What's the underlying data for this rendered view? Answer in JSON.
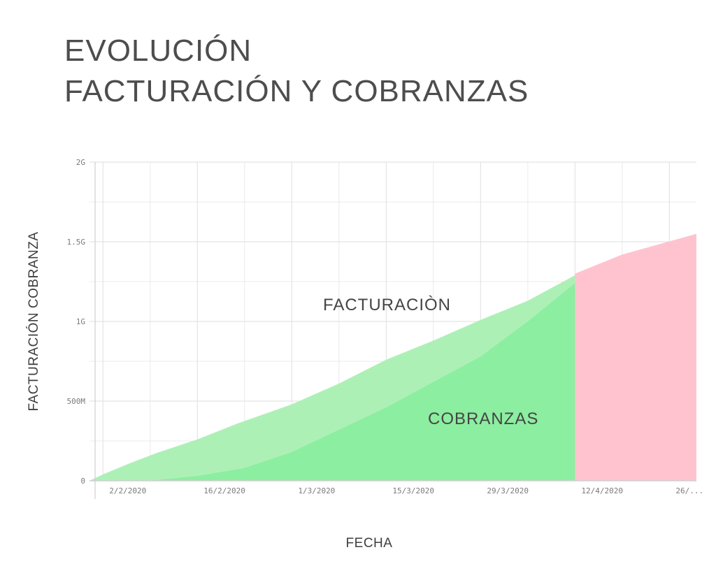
{
  "header": {
    "title_line1": "EVOLUCIÓN",
    "title_line2": "FACTURACIÓN Y COBRANZAS"
  },
  "colors": {
    "facturacion_fill": "#adf0b6",
    "cobranzas_fill": "#8ceea0",
    "projection_fill": "#ffc3d0",
    "grid": "#e4e4e4",
    "axis": "#cfcfcf"
  },
  "chart_data": {
    "type": "area",
    "xlabel": "FECHA",
    "ylabel": "FACTURACIÓN COBRANZA",
    "x_ticks": [
      {
        "date": "2020-02-02",
        "label": "2/2/2020"
      },
      {
        "date": "2020-02-16",
        "label": "16/2/2020"
      },
      {
        "date": "2020-03-01",
        "label": "1/3/2020"
      },
      {
        "date": "2020-03-15",
        "label": "15/3/2020"
      },
      {
        "date": "2020-03-29",
        "label": "29/3/2020"
      },
      {
        "date": "2020-04-12",
        "label": "12/4/2020"
      },
      {
        "date": "2020-04-26",
        "label": "26/..."
      }
    ],
    "y_ticks": [
      {
        "value": 0,
        "label": "0"
      },
      {
        "value": 500000000,
        "label": "500M"
      },
      {
        "value": 1000000000,
        "label": "1G"
      },
      {
        "value": 1500000000,
        "label": "1.5G"
      },
      {
        "value": 2000000000,
        "label": "2G"
      }
    ],
    "xlim": [
      "2020-01-31",
      "2020-04-30"
    ],
    "ylim": [
      0,
      2000000000
    ],
    "grid": true,
    "annotations": [
      {
        "text": "FACTURACIÒN"
      },
      {
        "text": "COBRANZAS"
      }
    ],
    "series": [
      {
        "name": "FACTURACIÒN",
        "points": [
          [
            "2020-01-31",
            0
          ],
          [
            "2020-02-02",
            40000000
          ],
          [
            "2020-02-06",
            110000000
          ],
          [
            "2020-02-10",
            175000000
          ],
          [
            "2020-02-16",
            260000000
          ],
          [
            "2020-02-22",
            360000000
          ],
          [
            "2020-03-01",
            480000000
          ],
          [
            "2020-03-08",
            610000000
          ],
          [
            "2020-03-15",
            760000000
          ],
          [
            "2020-03-22",
            880000000
          ],
          [
            "2020-03-29",
            1010000000
          ],
          [
            "2020-04-05",
            1130000000
          ],
          [
            "2020-04-12",
            1290000000
          ]
        ]
      },
      {
        "name": "COBRANZAS",
        "points": [
          [
            "2020-01-31",
            0
          ],
          [
            "2020-02-09",
            0
          ],
          [
            "2020-02-16",
            30000000
          ],
          [
            "2020-02-23",
            80000000
          ],
          [
            "2020-03-01",
            180000000
          ],
          [
            "2020-03-08",
            320000000
          ],
          [
            "2020-03-15",
            460000000
          ],
          [
            "2020-03-22",
            620000000
          ],
          [
            "2020-03-29",
            780000000
          ],
          [
            "2020-04-05",
            1000000000
          ],
          [
            "2020-04-12",
            1240000000
          ]
        ]
      },
      {
        "name": "",
        "points": [
          [
            "2020-04-12",
            1300000000
          ],
          [
            "2020-04-19",
            1420000000
          ],
          [
            "2020-04-30",
            1550000000
          ]
        ]
      }
    ]
  }
}
